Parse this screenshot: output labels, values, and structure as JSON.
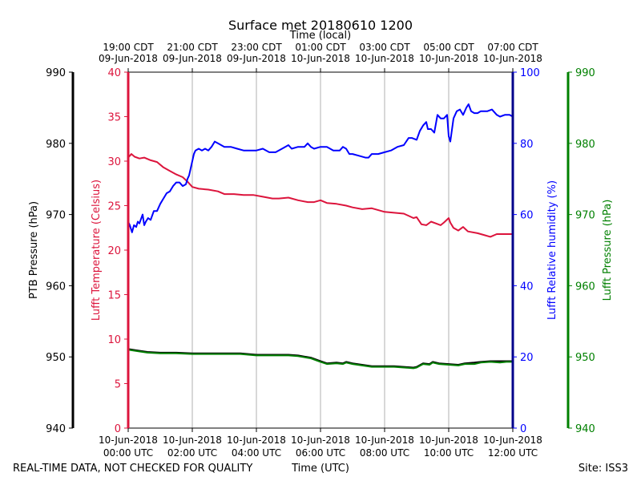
{
  "chart_data": {
    "type": "line",
    "title": "Surface met 20180610 1200",
    "x_top_label": "Time (local)",
    "x_bottom_label": "Time (UTC)",
    "footer_left": "REAL-TIME DATA, NOT CHECKED FOR QUALITY",
    "footer_right": "Site: ISS3",
    "xlim_hours": [
      0,
      12
    ],
    "grid_hours": [
      2,
      4,
      6,
      8,
      10
    ],
    "bottom_ticks": [
      {
        "hour": 0,
        "line1": "10-Jun-2018",
        "line2": "00:00 UTC"
      },
      {
        "hour": 2,
        "line1": "10-Jun-2018",
        "line2": "02:00 UTC"
      },
      {
        "hour": 4,
        "line1": "10-Jun-2018",
        "line2": "04:00 UTC"
      },
      {
        "hour": 6,
        "line1": "10-Jun-2018",
        "line2": "06:00 UTC"
      },
      {
        "hour": 8,
        "line1": "10-Jun-2018",
        "line2": "08:00 UTC"
      },
      {
        "hour": 10,
        "line1": "10-Jun-2018",
        "line2": "10:00 UTC"
      },
      {
        "hour": 12,
        "line1": "10-Jun-2018",
        "line2": "12:00 UTC"
      }
    ],
    "top_ticks": [
      {
        "hour": 0,
        "line1": "19:00 CDT",
        "line2": "09-Jun-2018"
      },
      {
        "hour": 2,
        "line1": "21:00 CDT",
        "line2": "09-Jun-2018"
      },
      {
        "hour": 4,
        "line1": "23:00 CDT",
        "line2": "09-Jun-2018"
      },
      {
        "hour": 6,
        "line1": "01:00 CDT",
        "line2": "10-Jun-2018"
      },
      {
        "hour": 8,
        "line1": "03:00 CDT",
        "line2": "10-Jun-2018"
      },
      {
        "hour": 10,
        "line1": "05:00 CDT",
        "line2": "10-Jun-2018"
      },
      {
        "hour": 12,
        "line1": "07:00 CDT",
        "line2": "10-Jun-2018"
      }
    ],
    "axes": {
      "ptb_pressure": {
        "label": "PTB Pressure (hPa)",
        "ylim": [
          940,
          990
        ],
        "ticks": [
          "940",
          "950",
          "960",
          "970",
          "980",
          "990"
        ],
        "color": "#000000"
      },
      "lufft_temperature": {
        "label": "Lufft Temperature (Celsius)",
        "ylim": [
          0,
          40
        ],
        "ticks": [
          "0",
          "5",
          "10",
          "15",
          "20",
          "25",
          "30",
          "35",
          "40"
        ],
        "color": "#dc143c"
      },
      "lufft_humidity": {
        "label": "Lufft Relative humidity (%)",
        "ylim": [
          0,
          100
        ],
        "ticks": [
          "0",
          "20",
          "40",
          "60",
          "80",
          "100"
        ],
        "color": "#0000ff"
      },
      "lufft_pressure": {
        "label": "Lufft Pressure (hPa)",
        "ylim": [
          940,
          990
        ],
        "ticks": [
          "940",
          "950",
          "960",
          "970",
          "980",
          "990"
        ],
        "color": "#008000"
      }
    },
    "series": [
      {
        "name": "Lufft Temperature",
        "axis": "lufft_temperature",
        "color": "#dc143c",
        "points": [
          [
            0,
            30.4
          ],
          [
            0.1,
            30.8
          ],
          [
            0.2,
            30.5
          ],
          [
            0.35,
            30.3
          ],
          [
            0.5,
            30.4
          ],
          [
            0.7,
            30.1
          ],
          [
            0.9,
            29.9
          ],
          [
            1.1,
            29.3
          ],
          [
            1.3,
            28.9
          ],
          [
            1.5,
            28.5
          ],
          [
            1.7,
            28.2
          ],
          [
            1.85,
            27.7
          ],
          [
            2.0,
            27.1
          ],
          [
            2.2,
            26.9
          ],
          [
            2.5,
            26.8
          ],
          [
            2.8,
            26.6
          ],
          [
            3.0,
            26.3
          ],
          [
            3.3,
            26.3
          ],
          [
            3.6,
            26.2
          ],
          [
            3.9,
            26.2
          ],
          [
            4.2,
            26.0
          ],
          [
            4.5,
            25.8
          ],
          [
            4.7,
            25.8
          ],
          [
            5.0,
            25.9
          ],
          [
            5.3,
            25.6
          ],
          [
            5.6,
            25.4
          ],
          [
            5.8,
            25.4
          ],
          [
            6.0,
            25.6
          ],
          [
            6.2,
            25.3
          ],
          [
            6.5,
            25.2
          ],
          [
            6.8,
            25.0
          ],
          [
            7.0,
            24.8
          ],
          [
            7.3,
            24.6
          ],
          [
            7.6,
            24.7
          ],
          [
            8.0,
            24.3
          ],
          [
            8.3,
            24.2
          ],
          [
            8.6,
            24.1
          ],
          [
            8.9,
            23.6
          ],
          [
            9.0,
            23.7
          ],
          [
            9.15,
            22.9
          ],
          [
            9.3,
            22.8
          ],
          [
            9.45,
            23.2
          ],
          [
            9.6,
            23.0
          ],
          [
            9.75,
            22.8
          ],
          [
            9.85,
            23.1
          ],
          [
            10.0,
            23.6
          ],
          [
            10.05,
            23.1
          ],
          [
            10.15,
            22.5
          ],
          [
            10.3,
            22.2
          ],
          [
            10.45,
            22.6
          ],
          [
            10.6,
            22.1
          ],
          [
            10.9,
            21.9
          ],
          [
            11.1,
            21.7
          ],
          [
            11.3,
            21.5
          ],
          [
            11.5,
            21.8
          ],
          [
            11.7,
            21.8
          ],
          [
            12.0,
            21.8
          ]
        ]
      },
      {
        "name": "Lufft Relative humidity",
        "axis": "lufft_humidity",
        "color": "#0000ff",
        "points": [
          [
            0,
            58
          ],
          [
            0.05,
            57
          ],
          [
            0.12,
            55
          ],
          [
            0.18,
            57
          ],
          [
            0.25,
            56.5
          ],
          [
            0.3,
            58
          ],
          [
            0.35,
            57.5
          ],
          [
            0.45,
            60
          ],
          [
            0.5,
            57
          ],
          [
            0.55,
            58
          ],
          [
            0.62,
            59
          ],
          [
            0.7,
            58.5
          ],
          [
            0.8,
            61
          ],
          [
            0.9,
            61
          ],
          [
            1.0,
            63
          ],
          [
            1.1,
            64.5
          ],
          [
            1.2,
            66
          ],
          [
            1.3,
            66.5
          ],
          [
            1.4,
            68
          ],
          [
            1.5,
            69
          ],
          [
            1.6,
            69
          ],
          [
            1.7,
            68
          ],
          [
            1.8,
            68.5
          ],
          [
            1.85,
            70
          ],
          [
            1.9,
            71
          ],
          [
            2.0,
            75
          ],
          [
            2.05,
            77
          ],
          [
            2.1,
            78
          ],
          [
            2.2,
            78.5
          ],
          [
            2.3,
            78
          ],
          [
            2.4,
            78.5
          ],
          [
            2.5,
            78
          ],
          [
            2.6,
            79
          ],
          [
            2.7,
            80.5
          ],
          [
            2.8,
            80
          ],
          [
            2.9,
            79.5
          ],
          [
            3.0,
            79
          ],
          [
            3.2,
            79
          ],
          [
            3.4,
            78.5
          ],
          [
            3.6,
            78
          ],
          [
            3.8,
            78
          ],
          [
            4.0,
            78
          ],
          [
            4.2,
            78.5
          ],
          [
            4.4,
            77.5
          ],
          [
            4.6,
            77.5
          ],
          [
            4.8,
            78.5
          ],
          [
            5.0,
            79.5
          ],
          [
            5.1,
            78.5
          ],
          [
            5.3,
            79
          ],
          [
            5.5,
            79
          ],
          [
            5.6,
            80
          ],
          [
            5.7,
            79
          ],
          [
            5.8,
            78.5
          ],
          [
            6.0,
            79
          ],
          [
            6.2,
            79
          ],
          [
            6.4,
            78
          ],
          [
            6.6,
            78
          ],
          [
            6.7,
            79
          ],
          [
            6.8,
            78.5
          ],
          [
            6.9,
            77
          ],
          [
            7.0,
            77
          ],
          [
            7.2,
            76.5
          ],
          [
            7.4,
            76
          ],
          [
            7.5,
            76
          ],
          [
            7.6,
            77
          ],
          [
            7.8,
            77
          ],
          [
            8.0,
            77.5
          ],
          [
            8.2,
            78
          ],
          [
            8.4,
            79
          ],
          [
            8.6,
            79.5
          ],
          [
            8.75,
            81.5
          ],
          [
            8.85,
            81.5
          ],
          [
            9.0,
            81
          ],
          [
            9.1,
            83.5
          ],
          [
            9.2,
            85
          ],
          [
            9.3,
            86
          ],
          [
            9.35,
            84
          ],
          [
            9.45,
            84
          ],
          [
            9.55,
            83
          ],
          [
            9.65,
            88
          ],
          [
            9.75,
            87
          ],
          [
            9.85,
            87
          ],
          [
            9.95,
            88
          ],
          [
            10.0,
            82
          ],
          [
            10.05,
            80.5
          ],
          [
            10.15,
            87
          ],
          [
            10.25,
            89
          ],
          [
            10.35,
            89.5
          ],
          [
            10.45,
            88
          ],
          [
            10.55,
            90
          ],
          [
            10.62,
            91
          ],
          [
            10.7,
            89
          ],
          [
            10.8,
            88.5
          ],
          [
            10.9,
            88.5
          ],
          [
            11.0,
            89
          ],
          [
            11.2,
            89
          ],
          [
            11.35,
            89.5
          ],
          [
            11.5,
            88
          ],
          [
            11.6,
            87.5
          ],
          [
            11.75,
            88
          ],
          [
            11.9,
            88
          ],
          [
            12.0,
            87.5
          ]
        ]
      },
      {
        "name": "PTB Pressure",
        "axis": "ptb_pressure",
        "color": "#000000",
        "points": [
          [
            0,
            951.1
          ],
          [
            0.3,
            950.9
          ],
          [
            0.6,
            950.7
          ],
          [
            1.0,
            950.6
          ],
          [
            1.5,
            950.6
          ],
          [
            2.0,
            950.5
          ],
          [
            2.5,
            950.5
          ],
          [
            3.0,
            950.5
          ],
          [
            3.5,
            950.5
          ],
          [
            4.0,
            950.3
          ],
          [
            4.5,
            950.3
          ],
          [
            5.0,
            950.3
          ],
          [
            5.3,
            950.2
          ],
          [
            5.7,
            949.9
          ],
          [
            6.0,
            949.4
          ],
          [
            6.2,
            949.1
          ],
          [
            6.5,
            949.2
          ],
          [
            6.7,
            949.1
          ],
          [
            6.8,
            949.3
          ],
          [
            7.0,
            949.1
          ],
          [
            7.3,
            948.9
          ],
          [
            7.6,
            948.7
          ],
          [
            8.0,
            948.7
          ],
          [
            8.3,
            948.7
          ],
          [
            8.6,
            948.6
          ],
          [
            8.9,
            948.5
          ],
          [
            9.0,
            948.6
          ],
          [
            9.2,
            949.1
          ],
          [
            9.4,
            949.0
          ],
          [
            9.5,
            949.3
          ],
          [
            9.7,
            949.1
          ],
          [
            10.0,
            949.0
          ],
          [
            10.3,
            948.9
          ],
          [
            10.5,
            949.1
          ],
          [
            10.8,
            949.2
          ],
          [
            11.0,
            949.3
          ],
          [
            11.3,
            949.4
          ],
          [
            11.6,
            949.4
          ],
          [
            11.8,
            949.4
          ],
          [
            12.0,
            949.4
          ]
        ]
      },
      {
        "name": "Lufft Pressure",
        "axis": "lufft_pressure",
        "color": "#008000",
        "points": [
          [
            0,
            951.0
          ],
          [
            0.3,
            950.8
          ],
          [
            0.6,
            950.6
          ],
          [
            1.0,
            950.5
          ],
          [
            1.5,
            950.5
          ],
          [
            2.0,
            950.4
          ],
          [
            2.5,
            950.4
          ],
          [
            3.0,
            950.4
          ],
          [
            3.5,
            950.4
          ],
          [
            4.0,
            950.2
          ],
          [
            4.5,
            950.2
          ],
          [
            5.0,
            950.2
          ],
          [
            5.3,
            950.1
          ],
          [
            5.7,
            949.8
          ],
          [
            6.0,
            949.3
          ],
          [
            6.2,
            949.0
          ],
          [
            6.5,
            949.1
          ],
          [
            6.7,
            949.0
          ],
          [
            6.8,
            949.2
          ],
          [
            7.0,
            949.0
          ],
          [
            7.3,
            948.8
          ],
          [
            7.6,
            948.6
          ],
          [
            8.0,
            948.6
          ],
          [
            8.3,
            948.6
          ],
          [
            8.6,
            948.5
          ],
          [
            8.9,
            948.4
          ],
          [
            9.0,
            948.5
          ],
          [
            9.2,
            949.0
          ],
          [
            9.4,
            948.9
          ],
          [
            9.5,
            949.2
          ],
          [
            9.7,
            949.0
          ],
          [
            10.0,
            948.9
          ],
          [
            10.3,
            948.8
          ],
          [
            10.5,
            949.0
          ],
          [
            10.8,
            949.0
          ],
          [
            11.0,
            949.2
          ],
          [
            11.3,
            949.3
          ],
          [
            11.6,
            949.2
          ],
          [
            11.8,
            949.3
          ],
          [
            12.0,
            949.3
          ]
        ]
      }
    ]
  }
}
